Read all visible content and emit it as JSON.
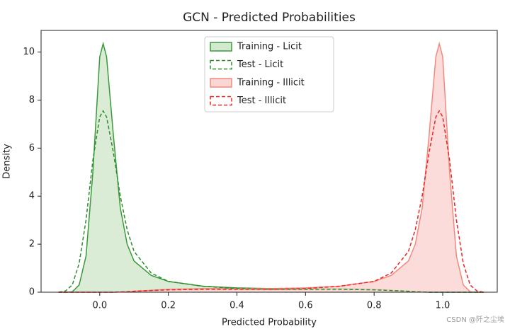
{
  "chart_data": {
    "type": "kde",
    "title": "GCN - Predicted Probabilities",
    "x_label": "Predicted Probability",
    "y_label": "Density",
    "x": [
      -0.12,
      -0.1,
      -0.08,
      -0.06,
      -0.04,
      -0.02,
      0,
      0.01,
      0.02,
      0.04,
      0.06,
      0.08,
      0.1,
      0.15,
      0.2,
      0.3,
      0.4,
      0.5,
      0.6,
      0.7,
      0.8,
      0.85,
      0.9,
      0.92,
      0.94,
      0.96,
      0.98,
      0.99,
      1,
      1.02,
      1.04,
      1.06,
      1.08,
      1.1,
      1.12
    ],
    "series": [
      {
        "name": "Training - Licit",
        "color": "#3a9a3a",
        "fill_color": "#d3e9cf",
        "fill": true,
        "dashed": false,
        "values": [
          0,
          0,
          0.02,
          0.3,
          1.5,
          5,
          9.8,
          10.35,
          9.8,
          6.5,
          3.5,
          2.0,
          1.3,
          0.7,
          0.45,
          0.25,
          0.18,
          0.15,
          0.15,
          0.15,
          0.12,
          0.08,
          0.04,
          0.02,
          0.01,
          0,
          0,
          0,
          0,
          0,
          0,
          0,
          0,
          0,
          0
        ]
      },
      {
        "name": "Test - Licit",
        "color": "#2e8b2e",
        "fill": false,
        "dashed": true,
        "values": [
          0,
          0.05,
          0.3,
          1.2,
          3.0,
          5.5,
          7.3,
          7.55,
          7.3,
          5.8,
          4.0,
          2.6,
          1.7,
          0.8,
          0.45,
          0.25,
          0.15,
          0.12,
          0.12,
          0.12,
          0.1,
          0.07,
          0.04,
          0.02,
          0.01,
          0,
          0,
          0,
          0,
          0,
          0,
          0,
          0,
          0,
          0
        ]
      },
      {
        "name": "Training - Illicit",
        "color": "#f08a7e",
        "fill_color": "#fbd6d3",
        "fill": true,
        "dashed": false,
        "values": [
          0,
          0,
          0,
          0,
          0,
          0,
          0,
          0,
          0,
          0,
          0.01,
          0.02,
          0.04,
          0.08,
          0.12,
          0.15,
          0.15,
          0.15,
          0.18,
          0.25,
          0.45,
          0.7,
          1.3,
          2.0,
          3.5,
          6.5,
          9.8,
          10.35,
          9.8,
          5,
          1.5,
          0.3,
          0.02,
          0,
          0
        ]
      },
      {
        "name": "Test - Illicit",
        "color": "#ee2222",
        "fill": false,
        "dashed": true,
        "values": [
          0,
          0,
          0,
          0,
          0,
          0,
          0,
          0,
          0,
          0,
          0.01,
          0.02,
          0.04,
          0.07,
          0.1,
          0.12,
          0.12,
          0.12,
          0.15,
          0.25,
          0.45,
          0.8,
          1.7,
          2.6,
          4.0,
          5.8,
          7.3,
          7.55,
          7.3,
          5.5,
          3.0,
          1.2,
          0.3,
          0.05,
          0
        ]
      }
    ],
    "xlim": [
      -0.171,
      1.159
    ],
    "ylim": [
      0,
      10.9
    ],
    "xticks": [
      {
        "value": 0,
        "label": "0.0"
      },
      0.2,
      0.4,
      0.6,
      0.8,
      {
        "value": 1,
        "label": "1.0"
      }
    ],
    "yticks": [
      0,
      2,
      4,
      6,
      8,
      10
    ],
    "legend": "upper center",
    "grid": false,
    "watermark": "CSDN @阡之尘埃"
  }
}
